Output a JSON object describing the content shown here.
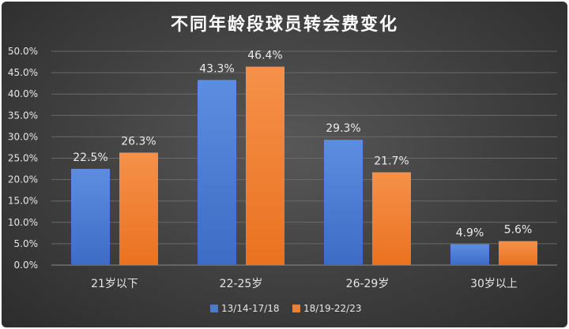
{
  "chart_data": {
    "type": "bar",
    "title": "不同年龄段球员转会费变化",
    "categories": [
      "21岁以下",
      "22-25岁",
      "26-29岁",
      "30岁以上"
    ],
    "series": [
      {
        "name": "13/14-17/18",
        "values": [
          22.5,
          43.3,
          29.3,
          4.9
        ],
        "labels": [
          "22.5%",
          "43.3%",
          "29.3%",
          "4.9%"
        ],
        "color": "#4a7bd0"
      },
      {
        "name": "18/19-22/23",
        "values": [
          26.3,
          46.4,
          21.7,
          5.6
        ],
        "labels": [
          "26.3%",
          "46.4%",
          "21.7%",
          "5.6%"
        ],
        "color": "#f07f2e"
      }
    ],
    "ylim": [
      0,
      50
    ],
    "yticks": [
      "0.0%",
      "5.0%",
      "10.0%",
      "15.0%",
      "20.0%",
      "25.0%",
      "30.0%",
      "35.0%",
      "40.0%",
      "45.0%",
      "50.0%"
    ],
    "grid": true,
    "legend": "bottom"
  }
}
